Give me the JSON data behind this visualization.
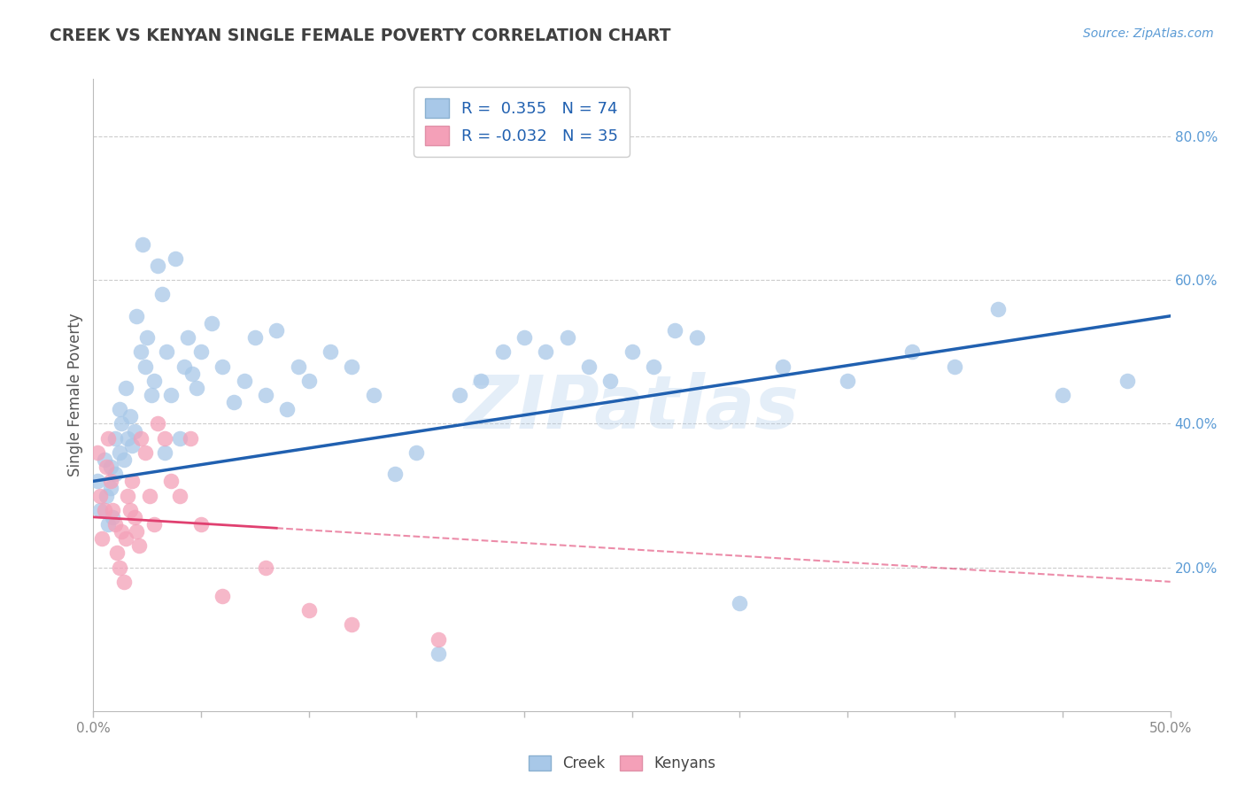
{
  "title": "CREEK VS KENYAN SINGLE FEMALE POVERTY CORRELATION CHART",
  "source": "Source: ZipAtlas.com",
  "ylabel_left": "Single Female Poverty",
  "xlim": [
    0.0,
    0.5
  ],
  "ylim": [
    0.0,
    0.88
  ],
  "xtick_vals": [
    0.0,
    0.05,
    0.1,
    0.15,
    0.2,
    0.25,
    0.3,
    0.35,
    0.4,
    0.45,
    0.5
  ],
  "xtick_label_vals": [
    0.0,
    0.5
  ],
  "ytick_right_labels": [
    "20.0%",
    "40.0%",
    "60.0%",
    "80.0%"
  ],
  "ytick_right_vals": [
    0.2,
    0.4,
    0.6,
    0.8
  ],
  "creek_R": 0.355,
  "creek_N": 74,
  "kenyan_R": -0.032,
  "kenyan_N": 35,
  "creek_color": "#a8c8e8",
  "kenyan_color": "#f4a0b8",
  "creek_line_color": "#2060b0",
  "kenyan_line_color": "#e04070",
  "watermark": "ZIPatlas",
  "background_color": "#ffffff",
  "grid_color": "#cccccc",
  "title_color": "#404040",
  "creek_x": [
    0.002,
    0.003,
    0.005,
    0.006,
    0.007,
    0.008,
    0.008,
    0.009,
    0.01,
    0.01,
    0.012,
    0.012,
    0.013,
    0.014,
    0.015,
    0.016,
    0.017,
    0.018,
    0.019,
    0.02,
    0.022,
    0.023,
    0.024,
    0.025,
    0.027,
    0.028,
    0.03,
    0.032,
    0.033,
    0.034,
    0.036,
    0.038,
    0.04,
    0.042,
    0.044,
    0.046,
    0.048,
    0.05,
    0.055,
    0.06,
    0.065,
    0.07,
    0.075,
    0.08,
    0.085,
    0.09,
    0.095,
    0.1,
    0.11,
    0.12,
    0.13,
    0.14,
    0.15,
    0.16,
    0.17,
    0.18,
    0.19,
    0.2,
    0.21,
    0.22,
    0.23,
    0.24,
    0.25,
    0.26,
    0.27,
    0.28,
    0.3,
    0.32,
    0.35,
    0.38,
    0.4,
    0.42,
    0.45,
    0.48
  ],
  "creek_y": [
    0.32,
    0.28,
    0.35,
    0.3,
    0.26,
    0.34,
    0.31,
    0.27,
    0.38,
    0.33,
    0.42,
    0.36,
    0.4,
    0.35,
    0.45,
    0.38,
    0.41,
    0.37,
    0.39,
    0.55,
    0.5,
    0.65,
    0.48,
    0.52,
    0.44,
    0.46,
    0.62,
    0.58,
    0.36,
    0.5,
    0.44,
    0.63,
    0.38,
    0.48,
    0.52,
    0.47,
    0.45,
    0.5,
    0.54,
    0.48,
    0.43,
    0.46,
    0.52,
    0.44,
    0.53,
    0.42,
    0.48,
    0.46,
    0.5,
    0.48,
    0.44,
    0.33,
    0.36,
    0.08,
    0.44,
    0.46,
    0.5,
    0.52,
    0.5,
    0.52,
    0.48,
    0.46,
    0.5,
    0.48,
    0.53,
    0.52,
    0.15,
    0.48,
    0.46,
    0.5,
    0.48,
    0.56,
    0.44,
    0.46
  ],
  "kenyan_x": [
    0.002,
    0.003,
    0.004,
    0.005,
    0.006,
    0.007,
    0.008,
    0.009,
    0.01,
    0.011,
    0.012,
    0.013,
    0.014,
    0.015,
    0.016,
    0.017,
    0.018,
    0.019,
    0.02,
    0.021,
    0.022,
    0.024,
    0.026,
    0.028,
    0.03,
    0.033,
    0.036,
    0.04,
    0.045,
    0.05,
    0.06,
    0.08,
    0.1,
    0.12,
    0.16
  ],
  "kenyan_y": [
    0.36,
    0.3,
    0.24,
    0.28,
    0.34,
    0.38,
    0.32,
    0.28,
    0.26,
    0.22,
    0.2,
    0.25,
    0.18,
    0.24,
    0.3,
    0.28,
    0.32,
    0.27,
    0.25,
    0.23,
    0.38,
    0.36,
    0.3,
    0.26,
    0.4,
    0.38,
    0.32,
    0.3,
    0.38,
    0.26,
    0.16,
    0.2,
    0.14,
    0.12,
    0.1
  ]
}
